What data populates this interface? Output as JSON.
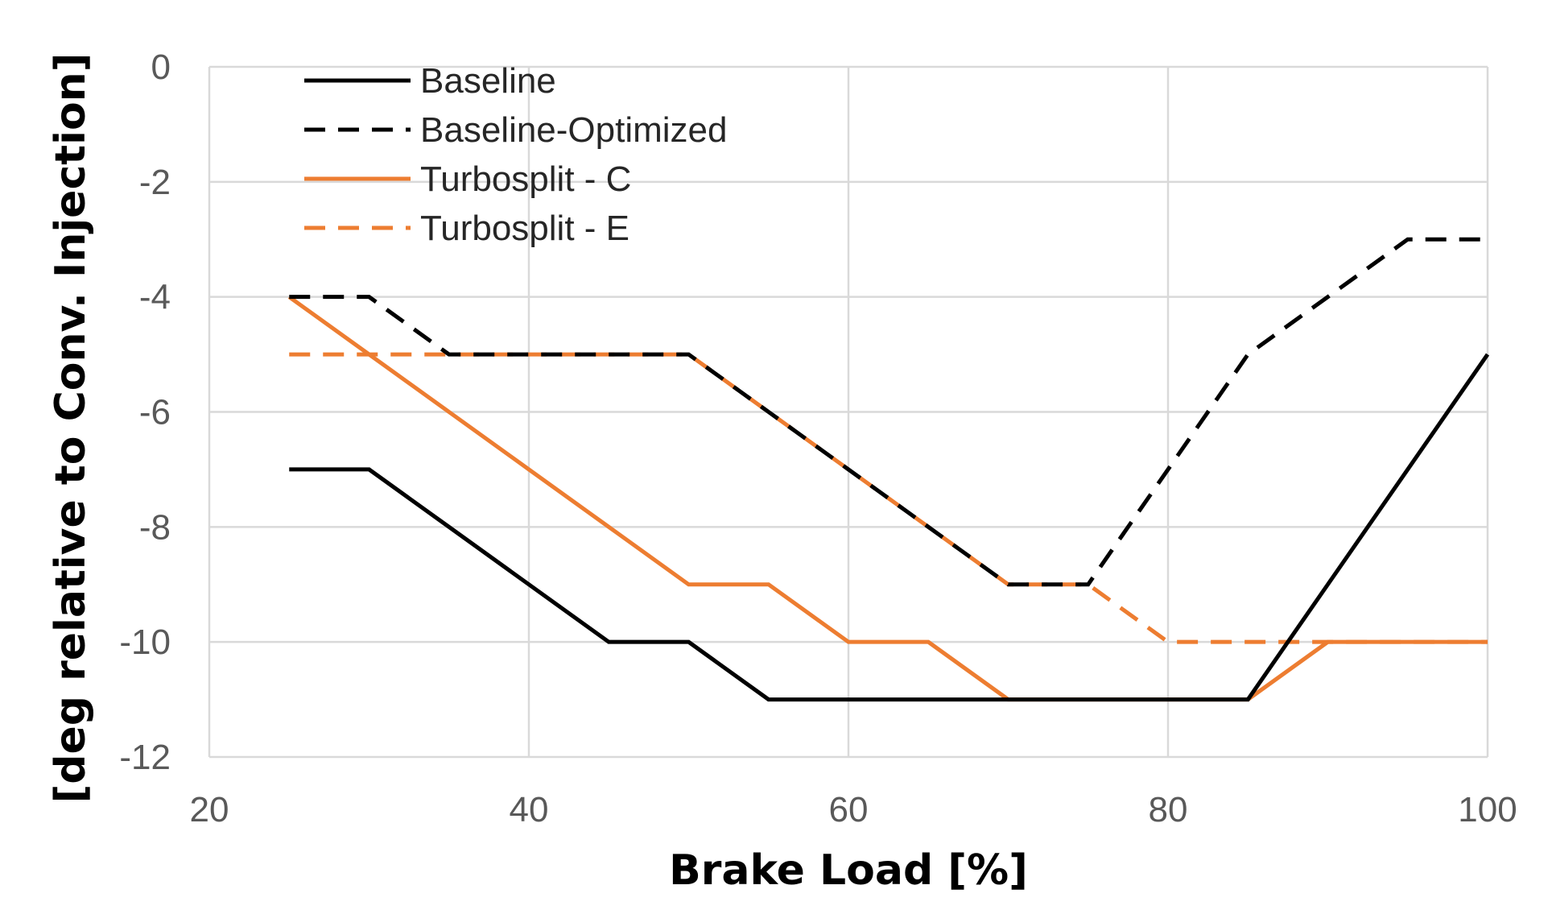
{
  "chart_data": {
    "type": "line",
    "title": "",
    "xlabel": "Brake Load [%]",
    "ylabel": "[deg relative to Conv. Injection]",
    "xlim": [
      20,
      100
    ],
    "ylim": [
      -12,
      0
    ],
    "xticks": [
      20,
      40,
      60,
      80,
      100
    ],
    "yticks": [
      0,
      -2,
      -4,
      -6,
      -8,
      -10,
      -12
    ],
    "grid": true,
    "legend": "top-left",
    "x": [
      25,
      30,
      35,
      40,
      45,
      50,
      55,
      60,
      65,
      70,
      75,
      80,
      85,
      90,
      95,
      100
    ],
    "series": [
      {
        "name": "Baseline",
        "color": "#000000",
        "dash": "solid",
        "values": [
          -7,
          -7,
          -8,
          -9,
          -10,
          -10,
          -11,
          -11,
          -11,
          -11,
          -11,
          -11,
          -11,
          -9,
          -7,
          -5
        ]
      },
      {
        "name": "Baseline-Optimized",
        "color": "#000000",
        "dash": "dashed",
        "values": [
          -4,
          -4,
          -5,
          -5,
          -5,
          -5,
          -6,
          -7,
          -8,
          -9,
          -9,
          -7,
          -5,
          -4,
          -3,
          -3
        ]
      },
      {
        "name": "Turbosplit - C",
        "color": "#ed7d31",
        "dash": "solid",
        "values": [
          -4,
          -5,
          -6,
          -7,
          -8,
          -9,
          -9,
          -10,
          -10,
          -11,
          -11,
          -11,
          -11,
          -10,
          -10,
          -10
        ]
      },
      {
        "name": "Turbosplit - E",
        "color": "#ed7d31",
        "dash": "dashed",
        "values": [
          -5,
          -5,
          -5,
          -5,
          -5,
          -5,
          -6,
          -7,
          -8,
          -9,
          -9,
          -10,
          -10,
          -10,
          -10,
          -10
        ]
      }
    ]
  }
}
